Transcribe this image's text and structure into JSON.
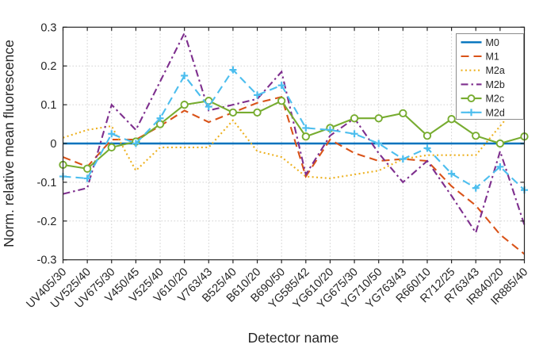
{
  "chart_data": {
    "type": "line",
    "title": "",
    "xlabel": "Detector name",
    "ylabel": "Norm. relative mean fluorescence",
    "ylim": [
      -0.3,
      0.3
    ],
    "ytick_labels": [
      "0.3",
      "0.2",
      "0.1",
      "0",
      "-0.1",
      "-0.2",
      "-0.3"
    ],
    "ytick_values": [
      0.3,
      0.2,
      0.1,
      0,
      -0.1,
      -0.2,
      -0.3
    ],
    "grid": true,
    "legend_position": "upper-right",
    "categories": [
      "UV405/30",
      "UV525/40",
      "UV675/30",
      "V450/45",
      "V525/40",
      "V610/20",
      "V763/43",
      "B525/40",
      "B610/20",
      "B690/50",
      "YG585/42",
      "YG610/20",
      "YG675/30",
      "YG710/50",
      "YG763/43",
      "R660/10",
      "R712/25",
      "R763/43",
      "IR840/20",
      "IR885/40"
    ],
    "series": [
      {
        "name": "M0",
        "color": "#0072BD",
        "style": "solid",
        "marker": "none",
        "values": [
          0,
          0,
          0,
          0,
          0,
          0,
          0,
          0,
          0,
          0,
          0,
          0,
          0,
          0,
          0,
          0,
          0,
          0,
          0,
          0
        ]
      },
      {
        "name": "M1",
        "color": "#D95319",
        "style": "dashed",
        "marker": "none",
        "values": [
          -0.035,
          -0.06,
          0.01,
          0.01,
          0.045,
          0.085,
          0.055,
          0.08,
          0.105,
          0.12,
          -0.085,
          0.01,
          -0.025,
          -0.045,
          -0.04,
          -0.045,
          -0.11,
          -0.16,
          -0.235,
          -0.285
        ]
      },
      {
        "name": "M2a",
        "color": "#EDB120",
        "style": "dotted",
        "marker": "none",
        "values": [
          0.015,
          0.035,
          0.045,
          -0.07,
          -0.01,
          -0.01,
          -0.01,
          0.06,
          -0.02,
          -0.035,
          -0.085,
          -0.09,
          -0.08,
          -0.07,
          -0.04,
          -0.03,
          -0.03,
          -0.03,
          0.045,
          0.12
        ]
      },
      {
        "name": "M2b",
        "color": "#7E2F8E",
        "style": "dashdot",
        "marker": "none",
        "values": [
          -0.13,
          -0.115,
          0.1,
          0.035,
          0.16,
          0.285,
          0.085,
          0.1,
          0.115,
          0.185,
          -0.08,
          0.02,
          0.065,
          -0.025,
          -0.1,
          -0.045,
          -0.135,
          -0.23,
          -0.02,
          -0.21
        ]
      },
      {
        "name": "M2c",
        "color": "#77AC30",
        "style": "solid",
        "marker": "circle",
        "values": [
          -0.055,
          -0.065,
          -0.01,
          0.005,
          0.05,
          0.1,
          0.11,
          0.08,
          0.08,
          0.11,
          0.018,
          0.04,
          0.065,
          0.065,
          0.078,
          0.02,
          0.063,
          0.02,
          0.0,
          0.018
        ]
      },
      {
        "name": "M2d",
        "color": "#4DBEEE",
        "style": "dashed",
        "marker": "plus",
        "values": [
          -0.085,
          -0.09,
          0.025,
          0.0,
          0.065,
          0.175,
          0.095,
          0.19,
          0.125,
          0.15,
          0.04,
          0.035,
          0.025,
          0.0,
          -0.04,
          -0.012,
          -0.078,
          -0.115,
          -0.06,
          -0.12
        ]
      }
    ],
    "axis_color": "#262626",
    "grid_color": "#d2d2d2",
    "legend_border_color": "#8c8c8c"
  }
}
